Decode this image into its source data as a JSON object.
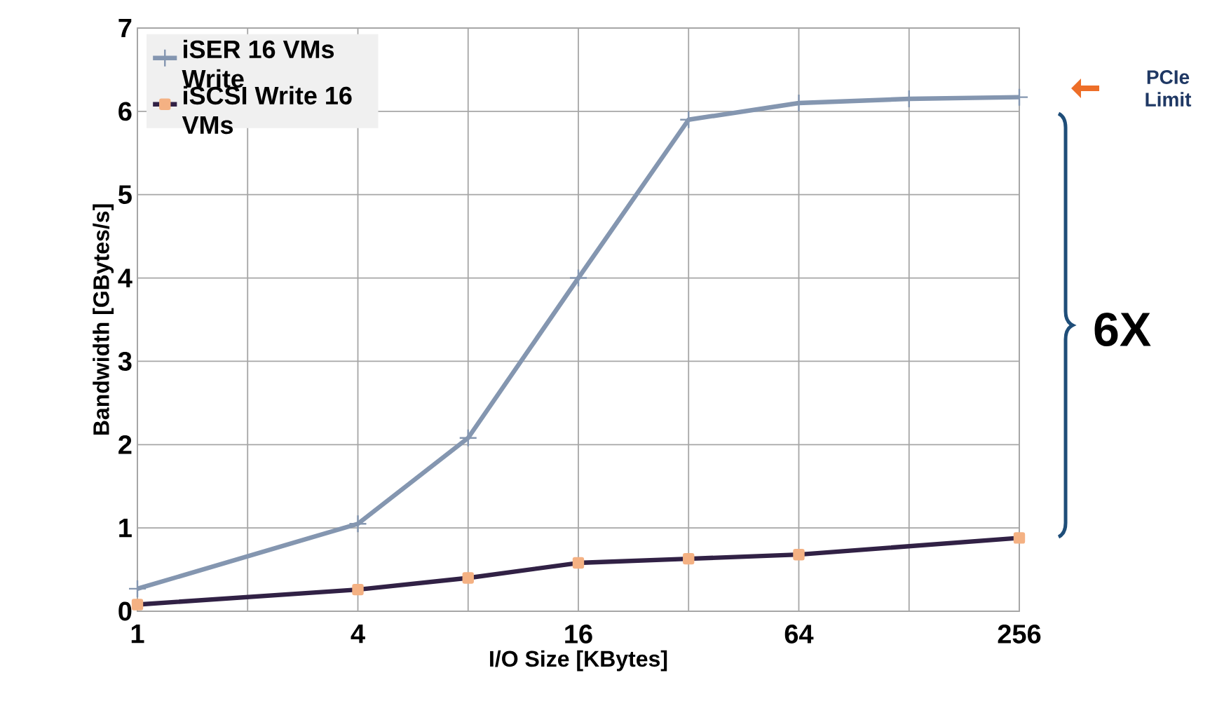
{
  "chart_data": {
    "type": "line",
    "xlabel": "I/O Size [KBytes]",
    "ylabel": "Bandwidth [GBytes/s]",
    "log": "x",
    "xlim": [
      1,
      256
    ],
    "xticks": [
      1,
      {
        "value": 2,
        "label": null
      },
      4,
      {
        "value": 8,
        "label": null
      },
      16,
      {
        "value": 32,
        "label": null
      },
      64,
      {
        "value": 128,
        "label": null
      },
      256
    ],
    "ylim": [
      0,
      7
    ],
    "yticks": [
      0,
      1,
      2,
      3,
      4,
      5,
      6,
      7
    ],
    "grid": true,
    "legend": "top left",
    "line_style": "solid",
    "series": [
      {
        "name": "iSER 16 VMs Write",
        "color": "#8496b0",
        "marker": "cross",
        "x": [
          1,
          4,
          8,
          16,
          32,
          64,
          128,
          256
        ],
        "values": [
          0.27,
          1.05,
          2.08,
          4.0,
          5.9,
          6.1,
          6.15,
          6.17
        ]
      },
      {
        "name": "iSCSI Write 16 VMs",
        "color": "#312145",
        "marker": "square",
        "x": [
          1,
          4,
          8,
          16,
          32,
          64,
          256
        ],
        "values": [
          0.08,
          0.26,
          0.4,
          0.58,
          0.63,
          0.68,
          0.88
        ]
      }
    ],
    "annotations": [
      "PCIe Limit",
      "6X"
    ]
  }
}
